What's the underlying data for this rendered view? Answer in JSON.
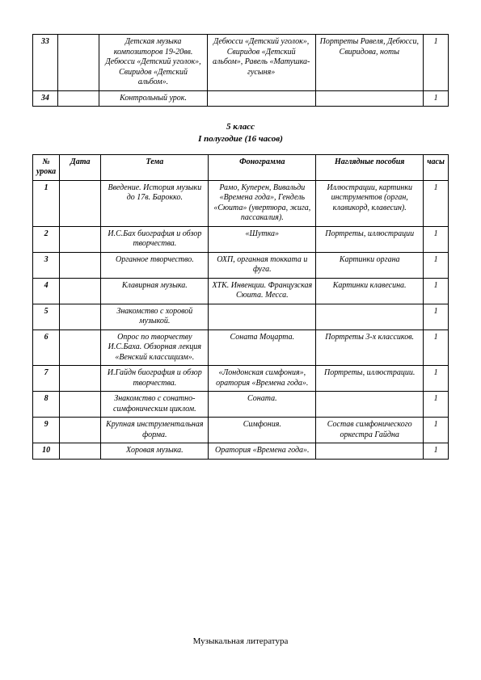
{
  "top_table": {
    "rows": [
      {
        "num": "33",
        "date": "",
        "theme": "Детская музыка композиторов 19-20вв. Дебюсси «Детский уголок», Свиридов «Детский альбом».",
        "phono": "Дебюсси «Детский уголок», Свиридов «Детский альбом», Равель «Матушка-гусыня»",
        "visual": "Портреты Равеля, Дебюсси, Свиридова, ноты",
        "hours": "1"
      },
      {
        "num": "34",
        "date": "",
        "theme": "Контрольный урок.",
        "phono": "",
        "visual": "",
        "hours": "1"
      }
    ]
  },
  "heading": {
    "line1": "5 класс",
    "line2": "I полугодие (16 часов)"
  },
  "main_table": {
    "header": {
      "num": "№ урока",
      "date": "Дата",
      "theme": "Тема",
      "phono": "Фонограмма",
      "visual": "Наглядные пособия",
      "hours": "часы"
    },
    "rows": [
      {
        "num": "1",
        "date": "",
        "theme": "Введение. История музыки до 17в. Барокко.",
        "phono": "Рамо, Куперен, Вивальди «Времена года», Гендель «Сюита» (увертюра, жига, пассакалия).",
        "visual": "Иллюстрации, картинки инструментов (орган, клавикорд, клавесин).",
        "hours": "1"
      },
      {
        "num": "2",
        "date": "",
        "theme": "И.С.Бах биография и обзор творчества.",
        "phono": "«Шутка»",
        "visual": "Портреты, иллюстрации",
        "hours": "1"
      },
      {
        "num": "3",
        "date": "",
        "theme": "Органное творчество.",
        "phono": "ОХП, органная токката и фуга.",
        "visual": "Картинки органа",
        "hours": "1"
      },
      {
        "num": "4",
        "date": "",
        "theme": "Клавирная музыка.",
        "phono": "ХТК. Инвенции. Французская Сюита. Месса.",
        "visual": "Картинки клавесина.",
        "hours": "1"
      },
      {
        "num": "5",
        "date": "",
        "theme": "Знакомство с хоровой музыкой.",
        "phono": "",
        "visual": "",
        "hours": "1"
      },
      {
        "num": "6",
        "date": "",
        "theme": "Опрос по творчеству И.С.Баха. Обзорная лекция «Венский классицизм».",
        "phono": "Соната Моцарта.",
        "visual": "Портреты 3-х классиков.",
        "hours": "1"
      },
      {
        "num": "7",
        "date": "",
        "theme": "И.Гайдн биография и обзор творчества.",
        "phono": "«Лондонская симфония», оратория «Времена года».",
        "visual": "Портреты, иллюстрации.",
        "hours": "1"
      },
      {
        "num": "8",
        "date": "",
        "theme": "Знакомство с сонатно-симфоническим циклом.",
        "phono": "Соната.",
        "visual": "",
        "hours": "1"
      },
      {
        "num": "9",
        "date": "",
        "theme": "Крупная инструментальная форма.",
        "phono": "Симфония.",
        "visual": "Состав симфонического оркестра Гайдна",
        "hours": "1"
      },
      {
        "num": "10",
        "date": "",
        "theme": "Хоровая музыка.",
        "phono": "Оратория «Времена года».",
        "visual": "",
        "hours": "1"
      }
    ]
  },
  "footer": "Музыкальная литература"
}
